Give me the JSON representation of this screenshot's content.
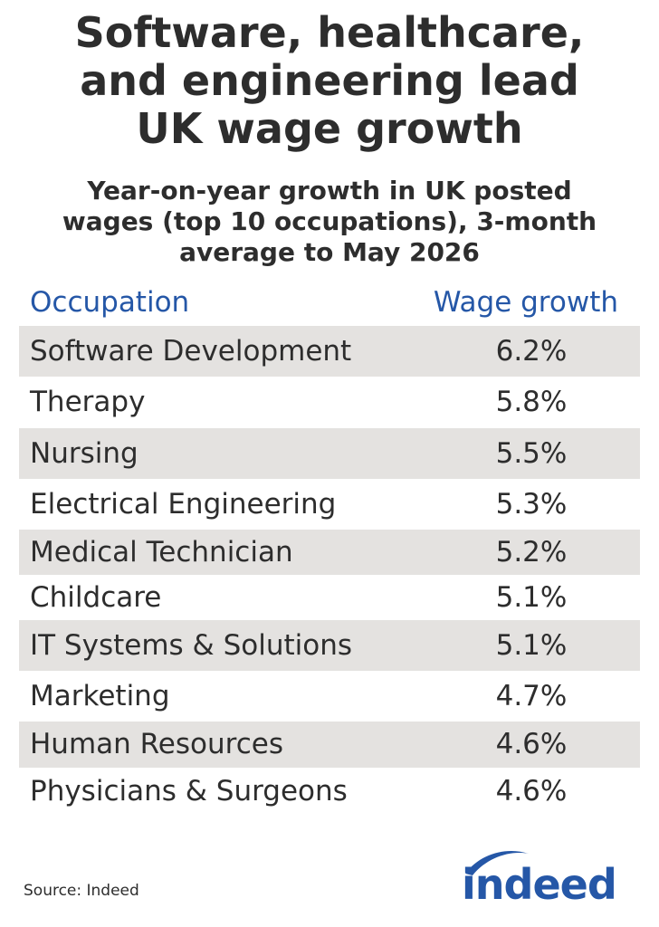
{
  "chart_data": {
    "type": "table",
    "title": "Software, healthcare, and engineering lead UK wage growth",
    "title_lines": [
      "Software, healthcare,",
      "and engineering lead",
      "UK wage growth"
    ],
    "subtitle": "Year-on-year growth in UK posted wages (top 10 occupations), 3-month average to May 2026",
    "subtitle_lines": [
      "Year-on-year growth in UK posted",
      "wages (top 10 occupations), 3-month",
      "average to May 2026"
    ],
    "columns": [
      "Occupation",
      "Wage growth"
    ],
    "rows": [
      {
        "occupation": "Software Development",
        "wage_growth": "6.2%"
      },
      {
        "occupation": "Therapy",
        "wage_growth": "5.8%"
      },
      {
        "occupation": "Nursing",
        "wage_growth": "5.5%"
      },
      {
        "occupation": "Electrical Engineering",
        "wage_growth": "5.3%"
      },
      {
        "occupation": "Medical Technician",
        "wage_growth": "5.2%"
      },
      {
        "occupation": "Childcare",
        "wage_growth": "5.1%"
      },
      {
        "occupation": "IT Systems & Solutions",
        "wage_growth": "5.1%"
      },
      {
        "occupation": "Marketing",
        "wage_growth": "4.7%"
      },
      {
        "occupation": "Human Resources",
        "wage_growth": "4.6%"
      },
      {
        "occupation": "Physicians & Surgeons",
        "wage_growth": "4.6%"
      }
    ],
    "source": "Source: Indeed",
    "logo_text": "indeed"
  },
  "colors": {
    "header_text": "#2557a7",
    "body_text": "#2d2d2d",
    "row_shade": "#e4e2e0",
    "logo": "#2557a7"
  }
}
